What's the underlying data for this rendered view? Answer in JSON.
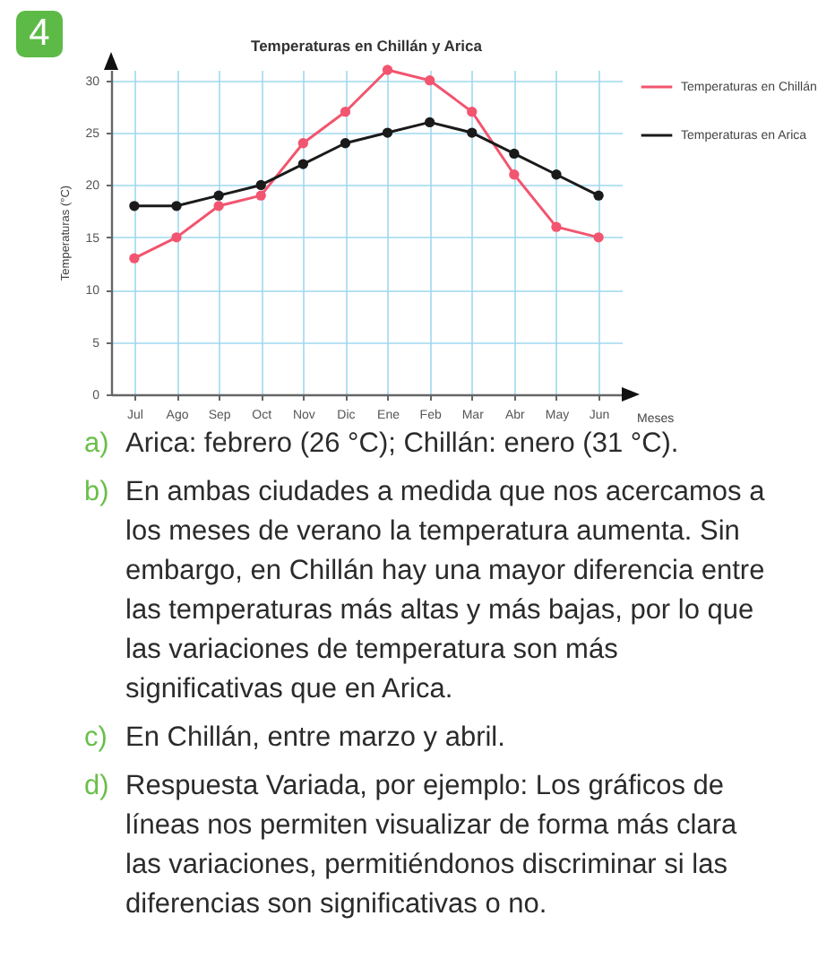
{
  "chart_data": {
    "type": "line",
    "title": "Temperaturas en Chillán y Arica",
    "xlabel": "Meses",
    "ylabel": "Temperaturas (°C)",
    "categories": [
      "Jul",
      "Ago",
      "Sep",
      "Oct",
      "Nov",
      "Dic",
      "Ene",
      "Feb",
      "Mar",
      "Abr",
      "May",
      "Jun"
    ],
    "series": [
      {
        "name": "Temperaturas en Chillán",
        "color": "#f2556f",
        "values": [
          13,
          15,
          18,
          19,
          24,
          27,
          31,
          30,
          27,
          21,
          16,
          15
        ]
      },
      {
        "name": "Temperaturas en Arica",
        "color": "#1a1a1a",
        "values": [
          18,
          18,
          19,
          20,
          22,
          24,
          25,
          26,
          25,
          23,
          21,
          19
        ]
      }
    ],
    "ylim": [
      0,
      31
    ],
    "yticks": [
      0,
      5,
      10,
      15,
      20,
      25,
      30
    ],
    "grid": true,
    "legend": "top right",
    "marker": "circle",
    "line_style": "solid",
    "annotations": [
      "4",
      "a) Arica: febrero (26 °C); Chillán: enero (31 °C).",
      "b) En ambas ciudades a medida que nos acercamos a los meses de verano la temperatura aumenta. Sin embargo, en Chillán hay una mayor diferencia entre las temperaturas más altas y más bajas, por lo que las variaciones de temperatura son más significativas que en Arica.",
      "c) En Chillán, entre marzo y abril.",
      "d) Respuesta Variada, por ejemplo: Los gráficos de líneas nos permiten visualizar de forma más clara las variaciones, permitiéndonos discriminar si las diferencias son significativas o no."
    ]
  }
}
